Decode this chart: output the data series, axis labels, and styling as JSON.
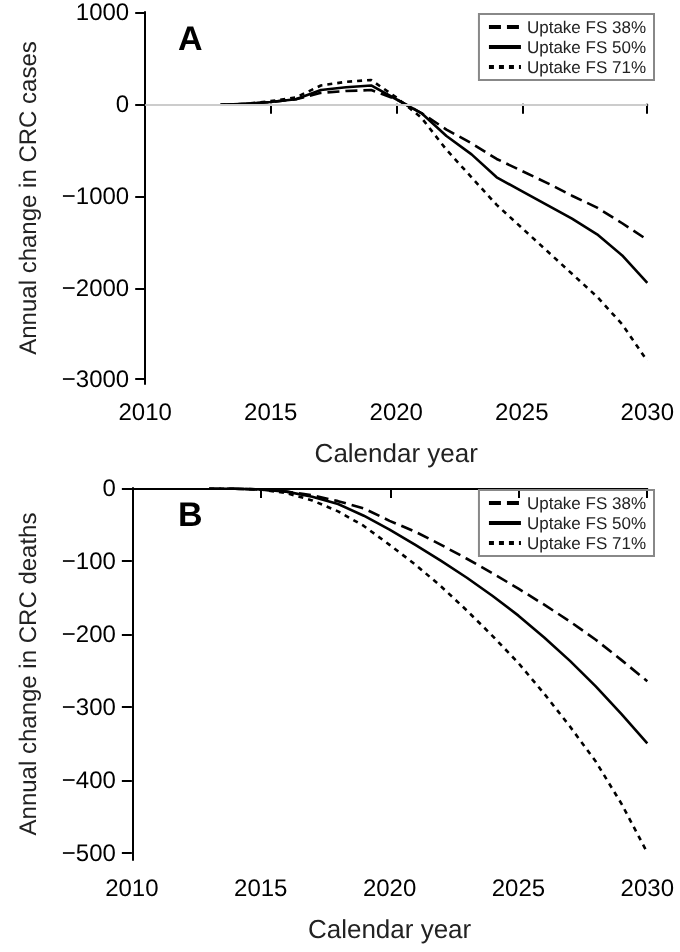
{
  "chart_data": [
    {
      "type": "line",
      "title": "A",
      "xlabel": "Calendar year",
      "ylabel": "Annual change in CRC cases",
      "x": [
        2013,
        2014,
        2015,
        2016,
        2017,
        2018,
        2019,
        2020,
        2021,
        2022,
        2023,
        2024,
        2025,
        2026,
        2027,
        2028,
        2029,
        2030
      ],
      "series": [
        {
          "name": "Uptake FS 38%",
          "color": "#000000",
          "line_style": "dashed",
          "values": [
            -10,
            0,
            20,
            50,
            120,
            140,
            150,
            50,
            -100,
            -280,
            -430,
            -600,
            -730,
            -860,
            -1000,
            -1130,
            -1300,
            -1480
          ]
        },
        {
          "name": "Uptake FS 50%",
          "color": "#000000",
          "line_style": "solid",
          "values": [
            -10,
            0,
            20,
            50,
            150,
            180,
            200,
            50,
            -100,
            -350,
            -550,
            -800,
            -950,
            -1100,
            -1250,
            -1420,
            -1650,
            -1950
          ]
        },
        {
          "name": "Uptake FS 71%",
          "color": "#000000",
          "line_style": "dotted",
          "values": [
            -10,
            0,
            30,
            70,
            200,
            240,
            260,
            70,
            -150,
            -500,
            -800,
            -1100,
            -1350,
            -1600,
            -1850,
            -2100,
            -2400,
            -2800
          ]
        }
      ],
      "xlim": [
        2010,
        2030
      ],
      "xticks": [
        2010,
        2015,
        2020,
        2025,
        2030
      ],
      "ylim": [
        -3050,
        1000
      ],
      "yticks": [
        -3000,
        -2000,
        -1000,
        0,
        1000
      ],
      "ref_lines": [
        {
          "axis": "y",
          "value": 0,
          "color": "#cccccc"
        }
      ],
      "legend": "top right",
      "marker": "none",
      "grid": false
    },
    {
      "type": "line",
      "title": "B",
      "xlabel": "Calendar year",
      "ylabel": "Annual change in CRC deaths",
      "x": [
        2013,
        2014,
        2015,
        2016,
        2017,
        2018,
        2019,
        2020,
        2021,
        2022,
        2023,
        2024,
        2025,
        2026,
        2027,
        2028,
        2029,
        2030
      ],
      "series": [
        {
          "name": "Uptake FS 38%",
          "color": "#000000",
          "line_style": "dashed",
          "values": [
            -1,
            -1,
            -2,
            -5,
            -10,
            -18,
            -28,
            -45,
            -60,
            -78,
            -97,
            -117,
            -138,
            -160,
            -183,
            -208,
            -236,
            -265
          ]
        },
        {
          "name": "Uptake FS 50%",
          "color": "#000000",
          "line_style": "solid",
          "values": [
            -1,
            -1,
            -2,
            -5,
            -12,
            -22,
            -38,
            -57,
            -78,
            -100,
            -123,
            -148,
            -175,
            -205,
            -237,
            -272,
            -310,
            -350
          ]
        },
        {
          "name": "Uptake FS 71%",
          "color": "#000000",
          "line_style": "dotted",
          "values": [
            -1,
            -1,
            -2,
            -7,
            -17,
            -32,
            -52,
            -78,
            -105,
            -135,
            -168,
            -203,
            -240,
            -282,
            -327,
            -375,
            -433,
            -500
          ]
        }
      ],
      "xlim": [
        2010,
        2030
      ],
      "xticks": [
        2010,
        2015,
        2020,
        2025,
        2030
      ],
      "ylim": [
        -510,
        0
      ],
      "yticks": [
        -500,
        -400,
        -300,
        -200,
        -100,
        0
      ],
      "legend": "top right",
      "marker": "none",
      "grid": false
    }
  ]
}
